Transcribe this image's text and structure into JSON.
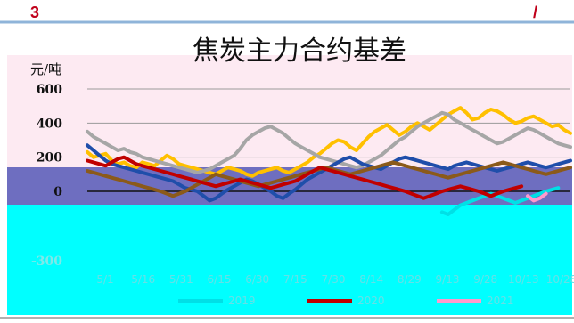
{
  "header": {
    "page_number": "3",
    "slash_mark": "/",
    "accent_color": "#c0001a",
    "rule_color": "#8fb4d9"
  },
  "chart_data": {
    "type": "line",
    "title": "焦炭主力合约基差",
    "ylabel": "元/吨",
    "xlabel": "",
    "ylim": [
      -300,
      600
    ],
    "yticks": [
      -300,
      0,
      200,
      400,
      600
    ],
    "ytick_labels": [
      "-300",
      "0",
      "200",
      "400",
      "600"
    ],
    "grid": true,
    "legend_position": "bottom",
    "x_tick_labels": [
      "5/1",
      "5/16",
      "5/31",
      "6/15",
      "6/30",
      "7/15",
      "7/30",
      "8/14",
      "8/29",
      "9/13",
      "9/28",
      "10/13",
      "10/28"
    ],
    "series": [
      {
        "name": "2015",
        "color": "#ffc000",
        "values": [
          230,
          200,
          210,
          220,
          180,
          160,
          170,
          150,
          140,
          170,
          160,
          150,
          180,
          210,
          190,
          160,
          150,
          140,
          130,
          120,
          110,
          100,
          120,
          140,
          130,
          120,
          100,
          90,
          110,
          120,
          130,
          140,
          120,
          110,
          130,
          150,
          170,
          200,
          220,
          250,
          280,
          300,
          290,
          260,
          240,
          280,
          320,
          350,
          370,
          390,
          360,
          330,
          350,
          380,
          400,
          380,
          360,
          390,
          420,
          450,
          470,
          490,
          460,
          420,
          430,
          460,
          480,
          470,
          450,
          420,
          400,
          410,
          430,
          440,
          420,
          400,
          380,
          390,
          360,
          340
        ]
      },
      {
        "name": "2016",
        "color": "#a6a6a6",
        "values": [
          350,
          320,
          300,
          280,
          260,
          240,
          250,
          230,
          220,
          200,
          190,
          180,
          170,
          160,
          150,
          140,
          130,
          120,
          110,
          120,
          130,
          150,
          170,
          190,
          210,
          250,
          300,
          330,
          350,
          370,
          380,
          360,
          340,
          310,
          280,
          260,
          240,
          220,
          200,
          190,
          180,
          170,
          160,
          150,
          140,
          150,
          170,
          190,
          210,
          240,
          270,
          300,
          320,
          350,
          380,
          400,
          420,
          440,
          460,
          450,
          420,
          400,
          380,
          360,
          340,
          320,
          300,
          280,
          290,
          310,
          330,
          350,
          370,
          360,
          340,
          320,
          300,
          280,
          270,
          260
        ]
      },
      {
        "name": "2017",
        "color": "#1f4eaa",
        "values": [
          270,
          240,
          210,
          180,
          160,
          150,
          140,
          130,
          120,
          110,
          100,
          90,
          80,
          70,
          60,
          40,
          20,
          10,
          0,
          -20,
          -40,
          -30,
          -10,
          10,
          30,
          50,
          70,
          60,
          40,
          20,
          0,
          -20,
          -30,
          -10,
          10,
          40,
          70,
          90,
          110,
          130,
          150,
          170,
          190,
          200,
          180,
          160,
          150,
          140,
          130,
          150,
          170,
          190,
          200,
          190,
          180,
          170,
          160,
          150,
          140,
          130,
          150,
          160,
          170,
          160,
          150,
          140,
          130,
          120,
          130,
          140,
          150,
          160,
          170,
          160,
          150,
          140,
          150,
          160,
          170,
          180
        ]
      },
      {
        "name": "2018",
        "color": "#8b5a1a",
        "values": [
          120,
          110,
          100,
          90,
          80,
          70,
          60,
          50,
          40,
          30,
          20,
          10,
          0,
          -10,
          -20,
          -10,
          0,
          20,
          40,
          60,
          80,
          100,
          90,
          80,
          70,
          60,
          50,
          40,
          30,
          40,
          50,
          60,
          70,
          80,
          90,
          100,
          110,
          120,
          130,
          140,
          130,
          120,
          110,
          100,
          110,
          120,
          130,
          140,
          150,
          160,
          170,
          160,
          150,
          140,
          130,
          120,
          110,
          100,
          90,
          80,
          90,
          100,
          110,
          120,
          130,
          140,
          150,
          160,
          170,
          160,
          150,
          140,
          130,
          120,
          110,
          100,
          110,
          120,
          130,
          140
        ]
      },
      {
        "name": "2019",
        "color": "#00e0e6",
        "values": [
          null,
          null,
          null,
          null,
          null,
          null,
          null,
          null,
          null,
          null,
          null,
          null,
          null,
          null,
          null,
          null,
          null,
          null,
          null,
          null,
          null,
          null,
          null,
          null,
          null,
          null,
          null,
          null,
          null,
          null,
          null,
          null,
          null,
          null,
          null,
          null,
          null,
          null,
          null,
          null,
          null,
          null,
          null,
          null,
          null,
          null,
          null,
          null,
          null,
          null,
          null,
          null,
          null,
          null,
          null,
          null,
          null,
          null,
          -90,
          -100,
          -80,
          -60,
          -50,
          -40,
          -30,
          -20,
          -10,
          -20,
          -30,
          -40,
          -50,
          -40,
          -30,
          -20,
          -10,
          0,
          10,
          20,
          null,
          null
        ]
      },
      {
        "name": "2020",
        "color": "#c00000",
        "values": [
          180,
          170,
          160,
          150,
          170,
          190,
          200,
          180,
          160,
          150,
          140,
          130,
          120,
          110,
          100,
          90,
          80,
          70,
          60,
          50,
          40,
          30,
          40,
          50,
          60,
          70,
          60,
          50,
          40,
          30,
          20,
          30,
          40,
          50,
          60,
          80,
          100,
          120,
          140,
          130,
          120,
          110,
          100,
          90,
          80,
          70,
          60,
          50,
          40,
          30,
          20,
          10,
          0,
          -10,
          -20,
          -30,
          -20,
          -10,
          0,
          10,
          20,
          30,
          20,
          10,
          0,
          -10,
          -20,
          -10,
          0,
          10,
          20,
          30,
          null,
          null,
          null,
          null,
          null,
          null,
          null,
          null
        ]
      },
      {
        "name": "2021",
        "color": "#ff99cc",
        "values": [
          null,
          null,
          null,
          null,
          null,
          null,
          null,
          null,
          null,
          null,
          null,
          null,
          null,
          null,
          null,
          null,
          null,
          null,
          null,
          null,
          null,
          null,
          null,
          null,
          null,
          null,
          null,
          null,
          null,
          null,
          null,
          null,
          null,
          null,
          null,
          null,
          null,
          null,
          null,
          null,
          null,
          null,
          null,
          null,
          null,
          null,
          null,
          null,
          null,
          null,
          null,
          null,
          null,
          null,
          null,
          null,
          null,
          null,
          null,
          null,
          null,
          null,
          null,
          null,
          null,
          null,
          null,
          null,
          null,
          null,
          null,
          null,
          -20,
          -40,
          -30,
          -10,
          null,
          null,
          null,
          null
        ]
      }
    ]
  }
}
